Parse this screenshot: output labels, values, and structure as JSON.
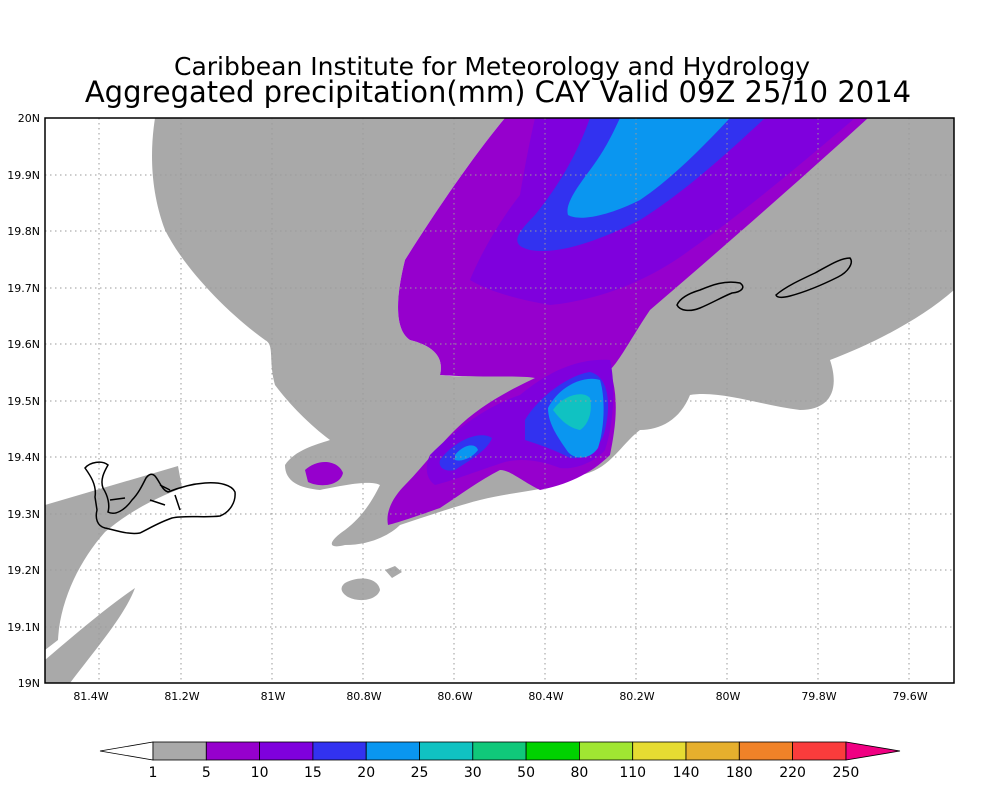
{
  "title": {
    "line1": "Caribbean Institute for Meteorology and Hydrology",
    "line2": "Aggregated precipitation(mm) CAY Valid 09Z 25/10 2014"
  },
  "axes": {
    "x_ticks": [
      "81.4W",
      "81.2W",
      "81W",
      "80.8W",
      "80.6W",
      "80.4W",
      "80.2W",
      "80W",
      "79.8W",
      "79.6W"
    ],
    "x_values": [
      -81.4,
      -81.2,
      -81.0,
      -80.8,
      -80.6,
      -80.4,
      -80.2,
      -80.0,
      -79.8,
      -79.6
    ],
    "y_ticks": [
      "20N",
      "19.9N",
      "19.8N",
      "19.7N",
      "19.6N",
      "19.5N",
      "19.4N",
      "19.3N",
      "19.2N",
      "19.1N",
      "19N"
    ],
    "y_values": [
      20.0,
      19.9,
      19.8,
      19.7,
      19.6,
      19.5,
      19.4,
      19.3,
      19.2,
      19.1,
      19.0
    ],
    "lon_range": [
      -81.5,
      -79.5
    ],
    "lat_range": [
      19.0,
      20.0
    ],
    "grid": "dotted"
  },
  "colorbar": {
    "labels": [
      "1",
      "5",
      "10",
      "15",
      "20",
      "25",
      "30",
      "50",
      "80",
      "110",
      "140",
      "180",
      "220",
      "250"
    ],
    "colors": [
      "#a9a9a9",
      "#9600cd",
      "#7f00dd",
      "#3232f0",
      "#0a96f0",
      "#10c2c2",
      "#10c87a",
      "#00d200",
      "#a0e632",
      "#e6dc32",
      "#e6af2d",
      "#f08228",
      "#fa3c3c",
      "#f00082"
    ],
    "under_color": "#ffffff",
    "over_color": "#f00082"
  },
  "chart_data": {
    "type": "heatmap",
    "variable": "Aggregated precipitation (mm)",
    "levels": [
      1,
      5,
      10,
      15,
      20,
      25,
      30,
      50,
      80,
      110,
      140,
      180,
      220,
      250
    ],
    "max_level_observed": "25-30 mm",
    "regions": [
      {
        "level_mm": "1-5",
        "description": "broad band across map"
      },
      {
        "level_mm": "5-10",
        "description": "band from about 80.7W 19.3N to 80.1W 20N"
      },
      {
        "level_mm": "10-15",
        "description": "core near 80.3W 19.85N"
      },
      {
        "level_mm": "15-20",
        "description": "cores near 80.3W 19.85N and 80.35W 19.45N"
      },
      {
        "level_mm": "20-25",
        "description": "cores near 80.25W 19.88N and 80.35W 19.48N"
      },
      {
        "level_mm": "25-30",
        "description": "small core near 80.35W 19.47N"
      }
    ]
  }
}
